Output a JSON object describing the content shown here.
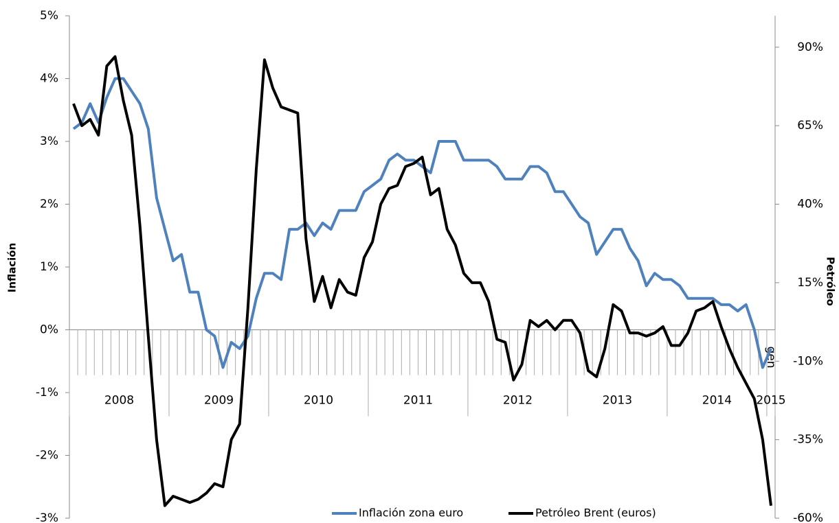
{
  "chart_data": {
    "type": "line",
    "y_label": "Inflación",
    "y2_label": "Petróleo",
    "categories": [
      null,
      null,
      null,
      null,
      null,
      null,
      null,
      null,
      null,
      null,
      null,
      null,
      null,
      null,
      null,
      null,
      null,
      null,
      null,
      null,
      null,
      null,
      null,
      null,
      null,
      null,
      null,
      null,
      null,
      null,
      null,
      null,
      null,
      null,
      null,
      null,
      null,
      null,
      null,
      null,
      null,
      null,
      null,
      null,
      null,
      null,
      null,
      null,
      null,
      null,
      null,
      null,
      null,
      null,
      null,
      null,
      null,
      null,
      null,
      null,
      null,
      null,
      null,
      null,
      null,
      null,
      null,
      null,
      null,
      null,
      null,
      null,
      null,
      null,
      null,
      null,
      null,
      null,
      null,
      null,
      null,
      null,
      null,
      null,
      "gen"
    ],
    "year_labels": [
      "2008",
      "2009",
      "2010",
      "2011",
      "2012",
      "2013",
      "2014",
      "2015"
    ],
    "ylim": [
      -3,
      5
    ],
    "yticks": [
      {
        "value": -3,
        "label": "-3%"
      },
      {
        "value": -2,
        "label": "-2%"
      },
      {
        "value": -1,
        "label": "-1%"
      },
      {
        "value": 0,
        "label": "0%"
      },
      {
        "value": 1,
        "label": "1%"
      },
      {
        "value": 2,
        "label": "2%"
      },
      {
        "value": 3,
        "label": "3%"
      },
      {
        "value": 4,
        "label": "4%"
      },
      {
        "value": 5,
        "label": "5%"
      }
    ],
    "y2lim": [
      -60,
      100
    ],
    "y2ticks": [
      {
        "value": -60,
        "label": "-60%"
      },
      {
        "value": -35,
        "label": "-35%"
      },
      {
        "value": -10,
        "label": "-10%"
      },
      {
        "value": 15,
        "label": "15%"
      },
      {
        "value": 40,
        "label": "40%"
      },
      {
        "value": 65,
        "label": "65%"
      },
      {
        "value": 90,
        "label": "90%"
      }
    ],
    "legend": "bottom",
    "series": [
      {
        "name": "Inflación zona euro",
        "color": "#4f81bd",
        "axis": "y",
        "values": [
          3.2,
          3.3,
          3.6,
          3.3,
          3.7,
          4.0,
          4.0,
          3.8,
          3.6,
          3.2,
          2.1,
          1.6,
          1.1,
          1.2,
          0.6,
          0.6,
          0.0,
          -0.1,
          -0.6,
          -0.2,
          -0.3,
          -0.1,
          0.5,
          0.9,
          0.9,
          0.8,
          1.6,
          1.6,
          1.7,
          1.5,
          1.7,
          1.6,
          1.9,
          1.9,
          1.9,
          2.2,
          2.3,
          2.4,
          2.7,
          2.8,
          2.7,
          2.7,
          2.6,
          2.5,
          3.0,
          3.0,
          3.0,
          2.7,
          2.7,
          2.7,
          2.7,
          2.6,
          2.4,
          2.4,
          2.4,
          2.6,
          2.6,
          2.5,
          2.2,
          2.2,
          2.0,
          1.8,
          1.7,
          1.2,
          1.4,
          1.6,
          1.6,
          1.3,
          1.1,
          0.7,
          0.9,
          0.8,
          0.8,
          0.7,
          0.5,
          0.5,
          0.5,
          0.5,
          0.4,
          0.4,
          0.3,
          0.4,
          0.0,
          -0.6,
          -0.3
        ]
      },
      {
        "name": "Petróleo Brent (euros)",
        "color": "#000000",
        "axis": "y2",
        "values": [
          72,
          65,
          67,
          62,
          84,
          87,
          73,
          62,
          33,
          -2,
          -35,
          -56,
          -53,
          -54,
          -55,
          -54,
          -52,
          -49,
          -50,
          -35,
          -30,
          7,
          51,
          86,
          77,
          71,
          70,
          69,
          29,
          9,
          17,
          7,
          16,
          12,
          11,
          23,
          28,
          40,
          45,
          46,
          52,
          53,
          55,
          43,
          45,
          32,
          27,
          18,
          15,
          15,
          9,
          -3,
          -4,
          -16,
          -11,
          3,
          1,
          3,
          0,
          3,
          3,
          -1,
          -13,
          -15,
          -6,
          8,
          6,
          -1,
          -1,
          -2,
          -1,
          1,
          -5,
          -5,
          -1,
          6,
          7,
          9,
          1,
          -6,
          -12,
          -17,
          -22,
          -35,
          -56
        ]
      }
    ]
  }
}
